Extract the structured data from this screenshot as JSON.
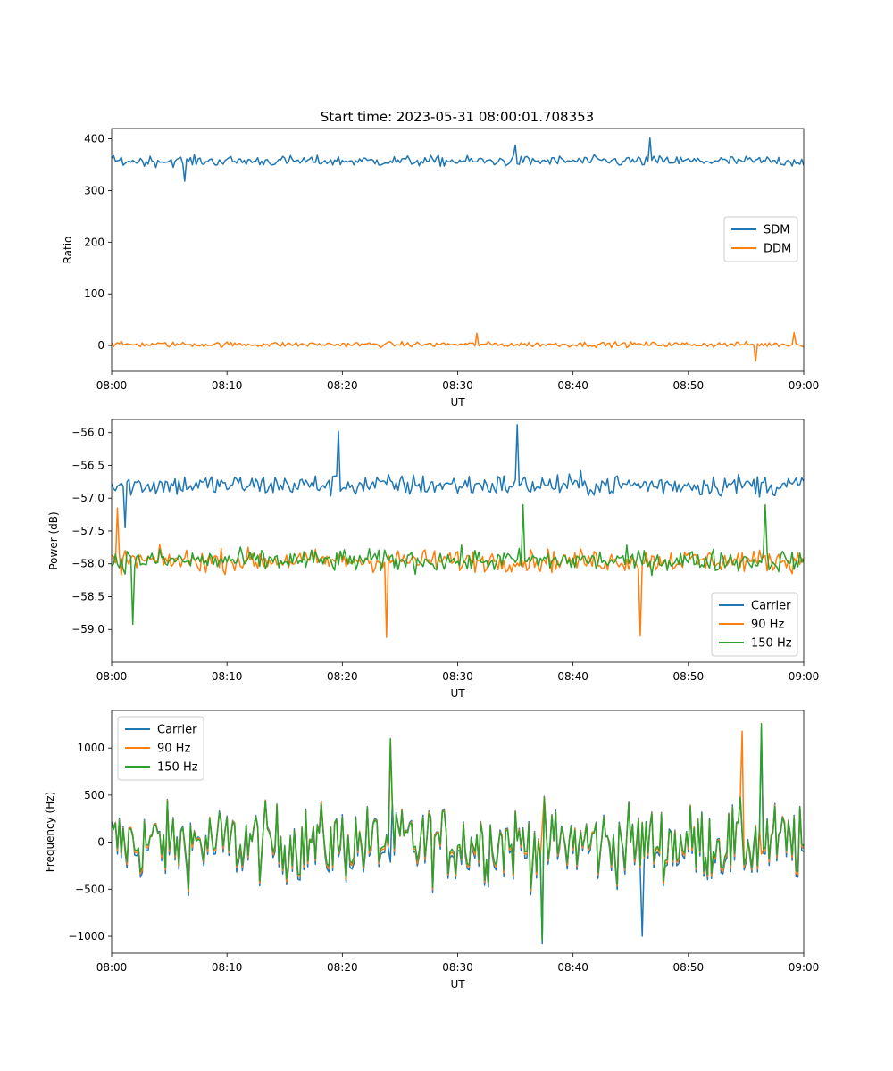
{
  "figure": {
    "title": "Start time: 2023-05-31 08:00:01.708353"
  },
  "colors": {
    "blue": "#1f77b4",
    "orange": "#ff7f0e",
    "green": "#2ca02c"
  },
  "chart_data": [
    {
      "type": "line",
      "title": "Start time: 2023-05-31 08:00:01.708353",
      "xlabel": "UT",
      "ylabel": "Ratio",
      "xlim": [
        "08:00",
        "09:00"
      ],
      "ylim": [
        -50,
        420
      ],
      "x_ticks": [
        "08:00",
        "08:10",
        "08:20",
        "08:30",
        "08:40",
        "08:50",
        "09:00"
      ],
      "y_ticks": [
        "0",
        "100",
        "200",
        "300",
        "400"
      ],
      "legend_position": "center-right",
      "sampling": "approx. 10 s samples 08:00–09:00 (noise trace, values estimated)",
      "series": [
        {
          "name": "SDM",
          "color": "#1f77b4",
          "mean": 357,
          "amplitude": 18,
          "spikes": [
            {
              "t": "08:46:40",
              "value": 402
            },
            {
              "t": "08:06:20",
              "value": 318
            },
            {
              "t": "08:35:00",
              "value": 388
            }
          ]
        },
        {
          "name": "DDM",
          "color": "#ff7f0e",
          "mean": 2,
          "amplitude": 9,
          "spikes": [
            {
              "t": "08:55:50",
              "value": -30
            },
            {
              "t": "08:31:40",
              "value": 24
            },
            {
              "t": "08:59:10",
              "value": 25
            }
          ]
        }
      ]
    },
    {
      "type": "line",
      "xlabel": "UT",
      "ylabel": "Power (dB)",
      "xlim": [
        "08:00",
        "09:00"
      ],
      "ylim": [
        -59.5,
        -55.8
      ],
      "x_ticks": [
        "08:00",
        "08:10",
        "08:20",
        "08:30",
        "08:40",
        "08:50",
        "09:00"
      ],
      "y_ticks": [
        "−59.0",
        "−58.5",
        "−58.0",
        "−57.5",
        "−57.0",
        "−56.5",
        "−56.0"
      ],
      "legend_position": "lower-right",
      "series": [
        {
          "name": "Carrier",
          "color": "#1f77b4",
          "mean": -56.8,
          "amplitude": 0.3,
          "spikes": [
            {
              "t": "08:35:10",
              "value": -55.88
            },
            {
              "t": "08:19:40",
              "value": -55.98
            },
            {
              "t": "08:01:10",
              "value": -57.45
            }
          ]
        },
        {
          "name": "90 Hz",
          "color": "#ff7f0e",
          "mean": -57.95,
          "amplitude": 0.3,
          "spikes": [
            {
              "t": "08:23:50",
              "value": -59.12
            },
            {
              "t": "08:45:50",
              "value": -59.1
            },
            {
              "t": "08:00:30",
              "value": -57.15
            }
          ]
        },
        {
          "name": "150 Hz",
          "color": "#2ca02c",
          "mean": -57.95,
          "amplitude": 0.3,
          "spikes": [
            {
              "t": "08:01:50",
              "value": -58.92
            },
            {
              "t": "08:56:40",
              "value": -57.1
            },
            {
              "t": "08:35:40",
              "value": -57.1
            }
          ]
        }
      ]
    },
    {
      "type": "line",
      "xlabel": "UT",
      "ylabel": "Frequency (Hz)",
      "xlim": [
        "08:00",
        "09:00"
      ],
      "ylim": [
        -1180,
        1400
      ],
      "x_ticks": [
        "08:00",
        "08:10",
        "08:20",
        "08:30",
        "08:40",
        "08:50",
        "09:00"
      ],
      "y_ticks": [
        "−1000",
        "−500",
        "0",
        "500",
        "1000"
      ],
      "legend_position": "upper-left",
      "series": [
        {
          "name": "Carrier",
          "color": "#1f77b4",
          "offset": -60,
          "amplitude": 360,
          "spikes": [
            {
              "t": "08:37:20",
              "value": -1080
            },
            {
              "t": "08:46:00",
              "value": -1000
            },
            {
              "t": "08:56:20",
              "value": 1200
            }
          ]
        },
        {
          "name": "90 Hz",
          "color": "#ff7f0e",
          "offset": -25,
          "amplitude": 360,
          "spikes": [
            {
              "t": "08:24:10",
              "value": 1080
            },
            {
              "t": "08:54:40",
              "value": 1180
            }
          ]
        },
        {
          "name": "150 Hz",
          "color": "#2ca02c",
          "offset": 0,
          "amplitude": 360,
          "spikes": [
            {
              "t": "08:56:20",
              "value": 1260
            },
            {
              "t": "08:24:10",
              "value": 1100
            },
            {
              "t": "08:37:20",
              "value": -1050
            }
          ]
        }
      ]
    }
  ]
}
